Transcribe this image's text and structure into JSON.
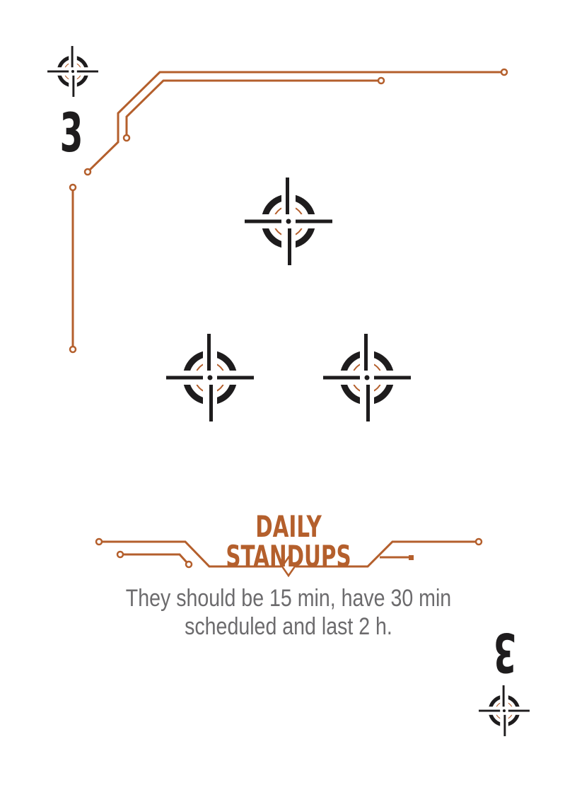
{
  "card": {
    "rank": "3",
    "title": "DAILY STANDUPS",
    "description_lines": [
      "They should be 15 min, have 30 min",
      "scheduled and last 2 h."
    ],
    "suit_icon": "crosshair-icon",
    "pip_count": 3
  },
  "colors": {
    "accent": "#b45f2c",
    "ink": "#1e1c1d",
    "body_text": "#6c6b6d",
    "background": "#ffffff"
  }
}
